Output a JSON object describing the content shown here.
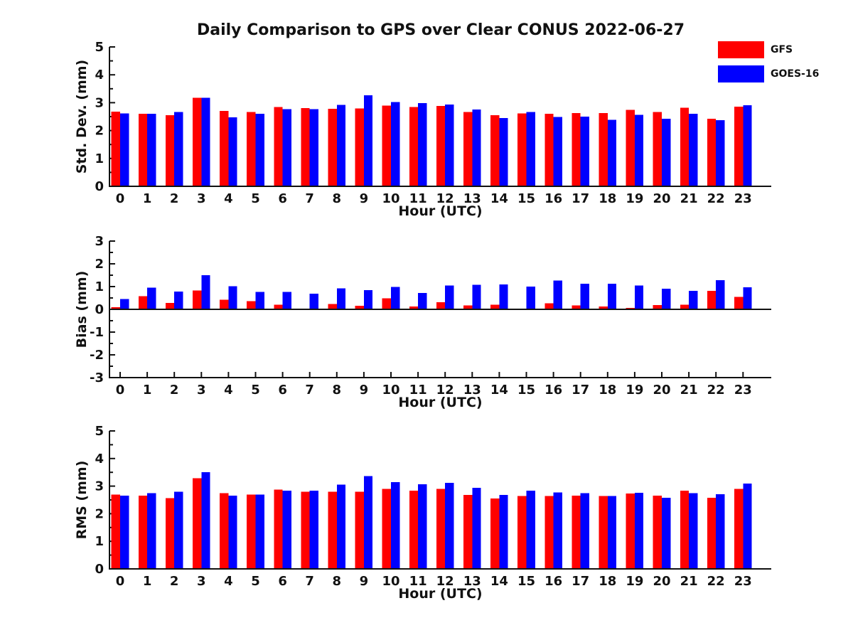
{
  "title": "Daily Comparison to GPS over Clear CONUS 2022-06-27",
  "legend": {
    "position": "figure top-right",
    "items": [
      {
        "label": "GFS",
        "color": "#ff0000"
      },
      {
        "label": "GOES-16",
        "color": "#0000ff"
      }
    ]
  },
  "colors": {
    "gfs": "#ff0000",
    "goes16": "#0000ff",
    "axis": "#111111"
  },
  "chart_data": [
    {
      "type": "bar",
      "panel": "std-dev",
      "ylabel": "Std. Dev. (mm)",
      "xlabel": "Hour (UTC)",
      "ylim": [
        0,
        5
      ],
      "yticks": [
        0,
        1,
        2,
        3,
        4,
        5
      ],
      "grid": false,
      "categories": [
        "0",
        "1",
        "2",
        "3",
        "4",
        "5",
        "6",
        "7",
        "8",
        "9",
        "10",
        "11",
        "12",
        "13",
        "14",
        "15",
        "16",
        "17",
        "18",
        "19",
        "20",
        "21",
        "22",
        "23"
      ],
      "series": [
        {
          "name": "GFS",
          "color": "#ff0000",
          "values": [
            2.68,
            2.6,
            2.55,
            3.18,
            2.7,
            2.67,
            2.85,
            2.81,
            2.78,
            2.79,
            2.9,
            2.84,
            2.88,
            2.67,
            2.55,
            2.62,
            2.6,
            2.63,
            2.63,
            2.74,
            2.66,
            2.82,
            2.42,
            2.86
          ]
        },
        {
          "name": "GOES-16",
          "color": "#0000ff",
          "values": [
            2.62,
            2.6,
            2.67,
            3.18,
            2.47,
            2.6,
            2.77,
            2.77,
            2.92,
            3.27,
            3.02,
            2.98,
            2.93,
            2.76,
            2.45,
            2.66,
            2.49,
            2.5,
            2.38,
            2.56,
            2.42,
            2.6,
            2.37,
            2.91
          ]
        }
      ]
    },
    {
      "type": "bar",
      "panel": "bias",
      "ylabel": "Bias (mm)",
      "xlabel": "Hour (UTC)",
      "ylim": [
        -3,
        3
      ],
      "yticks": [
        -3,
        -2,
        -1,
        0,
        1,
        2,
        3
      ],
      "grid": false,
      "categories": [
        "0",
        "1",
        "2",
        "3",
        "4",
        "5",
        "6",
        "7",
        "8",
        "9",
        "10",
        "11",
        "12",
        "13",
        "14",
        "15",
        "16",
        "17",
        "18",
        "19",
        "20",
        "21",
        "22",
        "23"
      ],
      "series": [
        {
          "name": "GFS",
          "color": "#ff0000",
          "values": [
            0.1,
            0.58,
            0.28,
            0.83,
            0.42,
            0.36,
            0.21,
            0.02,
            0.24,
            0.15,
            0.48,
            0.12,
            0.32,
            0.17,
            0.2,
            0.02,
            0.27,
            0.17,
            0.13,
            0.07,
            0.18,
            0.2,
            0.82,
            0.55
          ]
        },
        {
          "name": "GOES-16",
          "color": "#0000ff",
          "values": [
            0.45,
            0.95,
            0.78,
            1.5,
            1.02,
            0.76,
            0.77,
            0.68,
            0.92,
            0.84,
            0.99,
            0.72,
            1.04,
            1.08,
            1.1,
            1.0,
            1.26,
            1.13,
            1.12,
            1.04,
            0.91,
            0.82,
            1.28,
            0.97
          ]
        }
      ]
    },
    {
      "type": "bar",
      "panel": "rms",
      "ylabel": "RMS (mm)",
      "xlabel": "Hour (UTC)",
      "ylim": [
        0,
        5
      ],
      "yticks": [
        0,
        1,
        2,
        3,
        4,
        5
      ],
      "grid": false,
      "categories": [
        "0",
        "1",
        "2",
        "3",
        "4",
        "5",
        "6",
        "7",
        "8",
        "9",
        "10",
        "11",
        "12",
        "13",
        "14",
        "15",
        "16",
        "17",
        "18",
        "19",
        "20",
        "21",
        "22",
        "23"
      ],
      "series": [
        {
          "name": "GFS",
          "color": "#ff0000",
          "values": [
            2.69,
            2.66,
            2.56,
            3.28,
            2.74,
            2.69,
            2.87,
            2.79,
            2.79,
            2.79,
            2.9,
            2.83,
            2.9,
            2.68,
            2.55,
            2.64,
            2.64,
            2.65,
            2.64,
            2.73,
            2.66,
            2.84,
            2.58,
            2.9
          ]
        },
        {
          "name": "GOES-16",
          "color": "#0000ff",
          "values": [
            2.66,
            2.75,
            2.79,
            3.51,
            2.66,
            2.69,
            2.84,
            2.84,
            3.05,
            3.36,
            3.14,
            3.07,
            3.12,
            2.94,
            2.68,
            2.84,
            2.77,
            2.74,
            2.64,
            2.76,
            2.58,
            2.74,
            2.71,
            3.09
          ]
        }
      ]
    }
  ]
}
